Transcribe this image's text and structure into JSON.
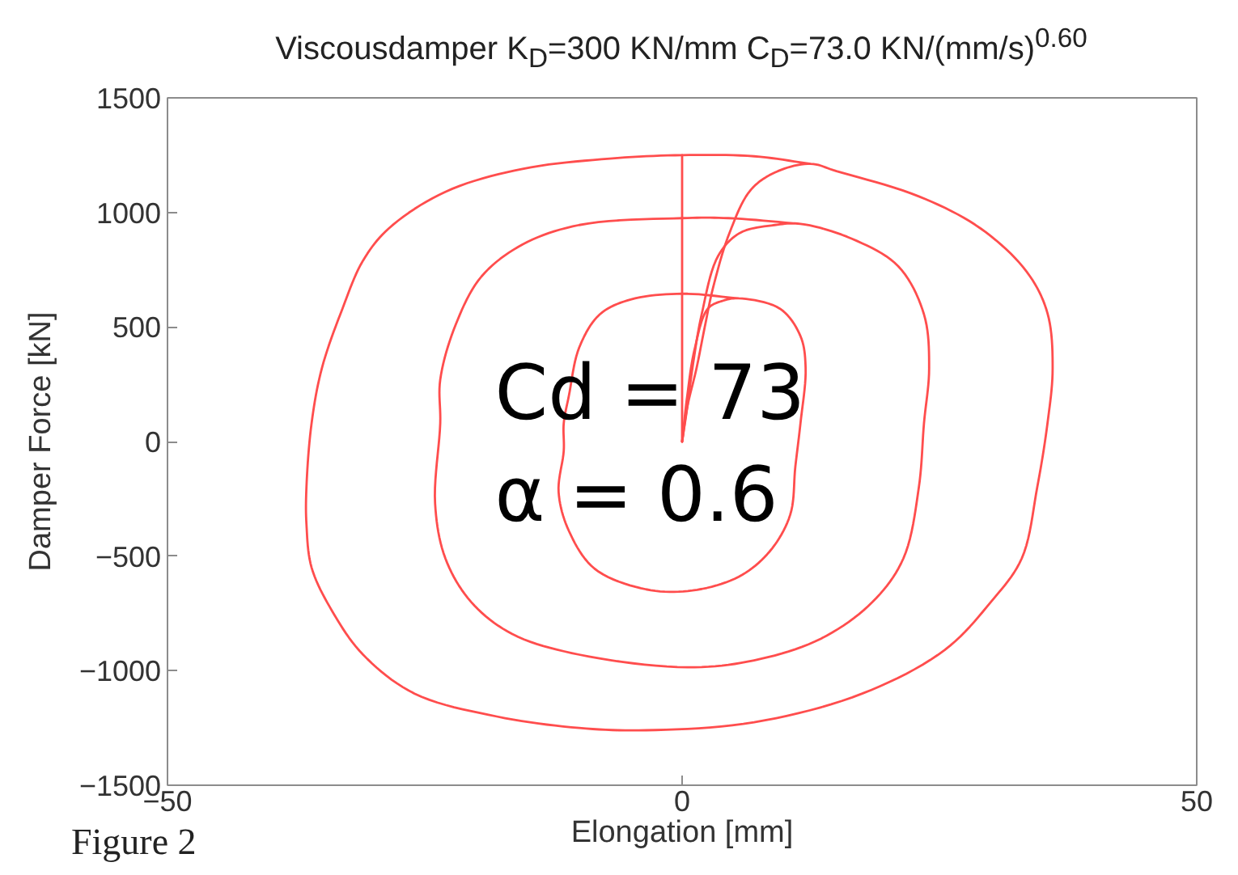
{
  "chart_data": {
    "type": "line",
    "title": "Viscousdamper K$_{D}$=300 KN/mm C$_{D}$=73.0 KN/(mm/s)$^{0.60}$",
    "xlabel": "Elongation [mm]",
    "ylabel": "Damper Force [kN]",
    "annotations": [
      "Cd = 73",
      "α = 0.6",
      "Figure 2"
    ],
    "xlim": [
      -50,
      50
    ],
    "ylim": [
      -1500,
      1500
    ],
    "xticks": [
      -50,
      0,
      50
    ],
    "yticks": [
      -1500,
      -1000,
      -500,
      0,
      500,
      1000,
      1500
    ],
    "grid": false,
    "line_style": "solid",
    "series": [
      {
        "color": "#ff4d4d",
        "x": [
          0,
          0
        ],
        "values": [
          0,
          1250
        ]
      },
      {
        "color": "#ff4d4d",
        "x": [
          0,
          0.5,
          1.4,
          2.2,
          3.0,
          4.6,
          6.7,
          9.3,
          12.5,
          15,
          23,
          29,
          33.5,
          35.5,
          36,
          35.5,
          34.5,
          33,
          30,
          25.5,
          17.5,
          7,
          -3.5,
          -10,
          -18,
          -26,
          -31,
          -34,
          -36,
          -36.5,
          -36.5,
          -36,
          -35,
          -33,
          -31,
          -28.5,
          -23,
          -15.5,
          -7,
          0,
          7,
          12.5
        ],
        "values": [
          0,
          150,
          320,
          500,
          670,
          910,
          1100,
          1180,
          1212,
          1180,
          1070,
          930,
          740,
          560,
          320,
          80,
          -200,
          -510,
          -700,
          -910,
          -1100,
          -1225,
          -1260,
          -1250,
          -1200,
          -1100,
          -930,
          -740,
          -550,
          -360,
          -200,
          80,
          320,
          580,
          790,
          930,
          1090,
          1190,
          1235,
          1250,
          1245,
          1212
        ]
      },
      {
        "color": "#ff4d4d",
        "x": [
          0,
          0.5,
          1.0,
          1.9,
          3.5,
          5.6,
          9,
          11.5,
          16.5,
          21,
          23.5,
          24,
          23.5,
          23,
          21.5,
          18.5,
          13.5,
          7,
          0.5,
          -10,
          -16.5,
          -20.5,
          -23,
          -24,
          -23.5,
          -23.5,
          -22,
          -19.5,
          -15.5,
          -10,
          0,
          4.5,
          11.5
        ],
        "values": [
          0,
          150,
          320,
          555,
          810,
          910,
          945,
          950,
          885,
          765,
          555,
          320,
          80,
          -200,
          -510,
          -700,
          -860,
          -955,
          -985,
          -930,
          -840,
          -700,
          -510,
          -270,
          80,
          270,
          510,
          720,
          860,
          945,
          975,
          975,
          950
        ]
      },
      {
        "color": "#ff4d4d",
        "x": [
          0,
          0.5,
          1.2,
          2.5,
          4,
          5.5,
          9.5,
          11.5,
          12,
          11.5,
          11,
          10.5,
          8.5,
          5.5,
          1,
          -3.5,
          -8.5,
          -11,
          -12,
          -11.5,
          -11.5,
          -11,
          -10,
          -8,
          -5,
          0,
          5.5
        ],
        "values": [
          0,
          200,
          400,
          580,
          615,
          625,
          580,
          460,
          320,
          80,
          -110,
          -320,
          -480,
          -590,
          -650,
          -645,
          -555,
          -390,
          -220,
          -40,
          80,
          200,
          410,
          555,
          620,
          645,
          625
        ]
      }
    ]
  }
}
